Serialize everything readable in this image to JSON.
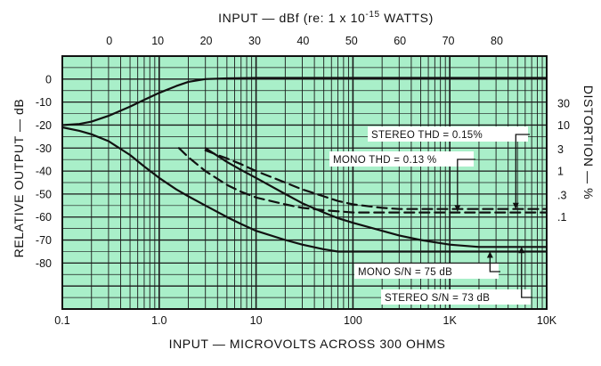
{
  "chart_data": {
    "type": "line",
    "title": "",
    "top_axis": {
      "label": "INPUT — dBf (re: 1 x 10",
      "label_exponent": "-15",
      "label_suffix": " WATTS)",
      "ticks": [
        "0",
        "10",
        "20",
        "30",
        "40",
        "50",
        "60",
        "70",
        "80"
      ]
    },
    "xlabel": "INPUT  —  MICROVOLTS ACROSS 300 OHMS",
    "x_scale": "log",
    "xlim": [
      0.1,
      10000
    ],
    "x_ticks": [
      "0.1",
      "1.0",
      "10",
      "100",
      "1K",
      "10K"
    ],
    "ylabel": "RELATIVE OUTPUT — dB",
    "ylim": [
      -100,
      10
    ],
    "y_ticks": [
      "0",
      "-10",
      "-20",
      "-30",
      "-40",
      "-50",
      "-60",
      "-70",
      "-80"
    ],
    "y2label": "DISTORTION — %",
    "y2_ticks": [
      "30",
      "10",
      "3",
      "1",
      ".3",
      ".1"
    ],
    "grid": true,
    "background_color": "#a9efc9",
    "grid_color": "#1a1a1a",
    "series": [
      {
        "name": "",
        "style": "solid",
        "x": [
          0.1,
          0.15,
          0.2,
          0.3,
          0.5,
          0.7,
          1,
          1.5,
          2,
          3,
          5,
          10,
          100,
          1000,
          10000
        ],
        "y": [
          -20,
          -19.5,
          -18.5,
          -16,
          -12,
          -9,
          -6,
          -3,
          -1.2,
          0,
          0.3,
          0.5,
          0.5,
          0.5,
          0.5
        ]
      },
      {
        "name": "MONO S/N = 75 dB",
        "style": "solid",
        "x": [
          0.1,
          0.15,
          0.2,
          0.3,
          0.5,
          0.7,
          1,
          1.5,
          2,
          3,
          5,
          7,
          10,
          20,
          30,
          50,
          70,
          100,
          1000,
          10000
        ],
        "y": [
          -21,
          -22.5,
          -24,
          -27,
          -33,
          -38,
          -43,
          -48,
          -51,
          -55,
          -60,
          -63,
          -66,
          -70,
          -72,
          -74,
          -75,
          -75,
          -75,
          -75
        ]
      },
      {
        "name": "STEREO S/N = 73 dB",
        "style": "solid",
        "x": [
          3,
          5,
          7,
          10,
          20,
          30,
          50,
          70,
          100,
          200,
          300,
          500,
          700,
          1000,
          2000,
          10000
        ],
        "y": [
          -30,
          -36,
          -39.5,
          -43,
          -50,
          -54,
          -58,
          -60.5,
          -62.5,
          -66,
          -68,
          -70,
          -71,
          -72,
          -73,
          -73
        ]
      },
      {
        "name": "MONO THD = 0.13 %",
        "style": "dashed",
        "x": [
          1.6,
          2,
          3,
          5,
          7,
          10,
          20,
          30,
          50,
          70,
          100,
          200,
          500,
          1000,
          10000
        ],
        "y": [
          -30,
          -34,
          -40,
          -46,
          -49,
          -51.5,
          -54.5,
          -56,
          -57,
          -57.5,
          -58,
          -58,
          -58,
          -58,
          -58
        ]
      },
      {
        "name": "STEREO THD = 0.15%",
        "style": "dashed",
        "x": [
          3,
          5,
          7,
          10,
          20,
          30,
          50,
          70,
          100,
          200,
          300,
          500,
          1000,
          2000,
          10000
        ],
        "y": [
          -31,
          -34.5,
          -37,
          -40,
          -45,
          -48,
          -51,
          -53,
          -54.5,
          -56,
          -56.5,
          -56.5,
          -56.5,
          -56.5,
          -56.5
        ]
      }
    ],
    "annotations": [
      {
        "text": "STEREO THD = 0.15%",
        "x": 4800,
        "y": -56.5
      },
      {
        "text": "MONO THD = 0.13 %",
        "x": 1200,
        "y": -57.5
      },
      {
        "text": "MONO S/N = 75 dB",
        "x": 2600,
        "y": -75
      },
      {
        "text": "STEREO S/N = 73 dB",
        "x": 5500,
        "y": -73
      }
    ]
  }
}
